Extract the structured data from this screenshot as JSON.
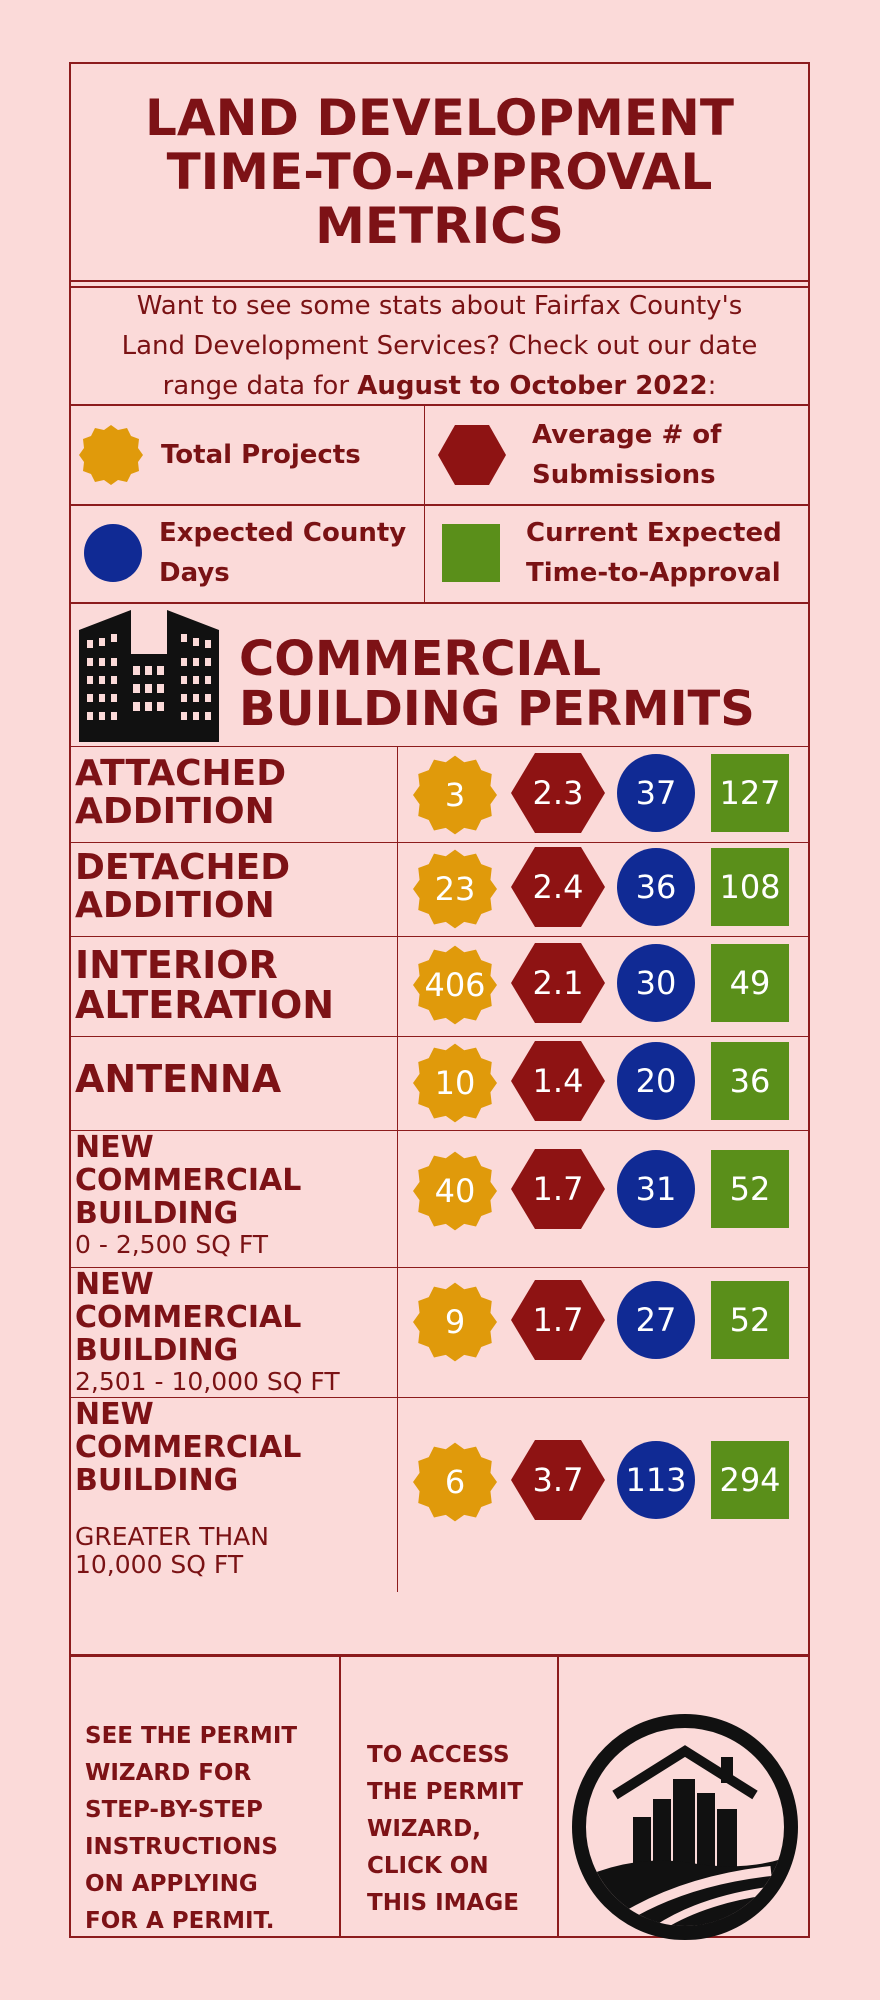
{
  "title": {
    "line1": "LAND DEVELOPMENT",
    "line2": "TIME-TO-APPROVAL",
    "line3": "METRICS"
  },
  "intro": {
    "line1": "Want to see some stats about Fairfax County's",
    "line2": "Land Development Services? Check out our date",
    "line3_prefix": "range data for ",
    "line3_bold": "August to October 2022",
    "line3_suffix": ":"
  },
  "legend": {
    "total_projects": {
      "label": "Total Projects",
      "icon": "orange-badge-icon",
      "color": "#e09a0b"
    },
    "avg_submissions": {
      "line1": "Average # of",
      "line2": "Submissions",
      "icon": "red-hexagon-icon",
      "color": "#8e1313"
    },
    "expected_county_days": {
      "line1": "Expected County",
      "line2": "Days",
      "icon": "blue-circle-icon",
      "color": "#102a94"
    },
    "current_expected": {
      "line1": "Current Expected",
      "line2": "Time-to-Approval",
      "icon": "green-square-icon",
      "color": "#5a8f1a"
    }
  },
  "section": {
    "title_line1": "COMMERCIAL",
    "title_line2": "BUILDING PERMITS",
    "icon": "office-buildings-icon"
  },
  "rows": [
    {
      "name1": "ATTACHED",
      "name2": "ADDITION",
      "name3": "",
      "sub": "",
      "sub2": "",
      "total": "3",
      "avg": "2.3",
      "days": "37",
      "current": "127"
    },
    {
      "name1": "DETACHED",
      "name2": "ADDITION",
      "name3": "",
      "sub": "",
      "sub2": "",
      "total": "23",
      "avg": "2.4",
      "days": "36",
      "current": "108"
    },
    {
      "name1": "INTERIOR",
      "name2": "ALTERATION",
      "name3": "",
      "sub": "",
      "sub2": "",
      "total": "406",
      "avg": "2.1",
      "days": "30",
      "current": "49"
    },
    {
      "name1": "ANTENNA",
      "name2": "",
      "name3": "",
      "sub": "",
      "sub2": "",
      "total": "10",
      "avg": "1.4",
      "days": "20",
      "current": "36"
    },
    {
      "name1": "NEW",
      "name2": "COMMERCIAL",
      "name3": "BUILDING",
      "sub": "0 - 2,500 SQ FT",
      "sub2": "",
      "total": "40",
      "avg": "1.7",
      "days": "31",
      "current": "52"
    },
    {
      "name1": "NEW",
      "name2": "COMMERCIAL",
      "name3": "BUILDING",
      "sub": "2,501 - 10,000 SQ FT",
      "sub2": "",
      "total": "9",
      "avg": "1.7",
      "days": "27",
      "current": "52"
    },
    {
      "name1": "NEW",
      "name2": "COMMERCIAL",
      "name3": "BUILDING",
      "sub": "GREATER THAN",
      "sub2": "10,000 SQ FT",
      "total": "6",
      "avg": "3.7",
      "days": "113",
      "current": "294"
    }
  ],
  "footer": {
    "left": [
      "SEE THE PERMIT",
      "WIZARD FOR",
      "STEP-BY-STEP",
      "INSTRUCTIONS",
      "ON APPLYING",
      "FOR A PERMIT."
    ],
    "middle": [
      "TO ACCESS",
      "THE PERMIT",
      "WIZARD,",
      "CLICK ON",
      "THIS IMAGE"
    ],
    "logo_icon": "permit-wizard-city-logo-icon"
  }
}
